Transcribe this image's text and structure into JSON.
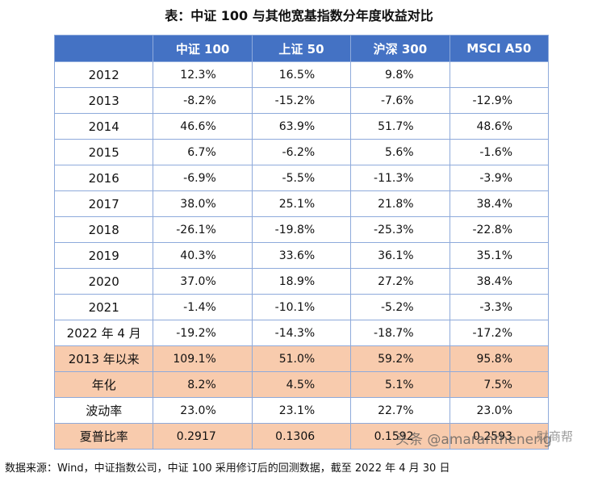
{
  "title": "表：中证 100 与其他宽基指数分年度收益对比",
  "table": {
    "header": [
      "中证 100",
      "上证 50",
      "沪深 300",
      "MSCI A50"
    ],
    "rows": [
      [
        "2012",
        "12.3%",
        "16.5%",
        "9.8%",
        null
      ],
      [
        "2013",
        "-8.2%",
        "-15.2%",
        "-7.6%",
        "-12.9%"
      ],
      [
        "2014",
        "46.6%",
        "63.9%",
        "51.7%",
        "48.6%"
      ],
      [
        "2015",
        "6.7%",
        "-6.2%",
        "5.6%",
        "-1.6%"
      ],
      [
        "2016",
        "-6.9%",
        "-5.5%",
        "-11.3%",
        "-3.9%"
      ],
      [
        "2017",
        "38.0%",
        "25.1%",
        "21.8%",
        "38.4%"
      ],
      [
        "2018",
        "-26.1%",
        "-19.8%",
        "-25.3%",
        "-22.8%"
      ],
      [
        "2019",
        "40.3%",
        "33.6%",
        "36.1%",
        "35.1%"
      ],
      [
        "2020",
        "37.0%",
        "18.9%",
        "27.2%",
        "38.4%"
      ],
      [
        "2021",
        "-1.4%",
        "-10.1%",
        "-5.2%",
        "-3.3%"
      ],
      [
        "2022 年 4 月",
        "-19.2%",
        "-14.3%",
        "-18.7%",
        "-17.2%"
      ],
      [
        "2013 年以来",
        "109.1%",
        "51.0%",
        "59.2%",
        "95.8%"
      ],
      [
        "年化",
        "8.2%",
        "4.5%",
        "5.1%",
        "7.5%"
      ],
      [
        "波动率",
        "23.0%",
        "23.1%",
        "22.7%",
        "23.0%"
      ],
      [
        "夏普比率",
        "0.2917",
        "0.1306",
        "0.1592",
        "0.2593"
      ]
    ]
  },
  "footer": "数据来源：Wind，中证指数公司，中证 100 采用修订后的回测数据，截至 2022 年 4 月 30 日",
  "watermark": "头条 @amaranthenerig",
  "watermark_2": "财商帮"
}
